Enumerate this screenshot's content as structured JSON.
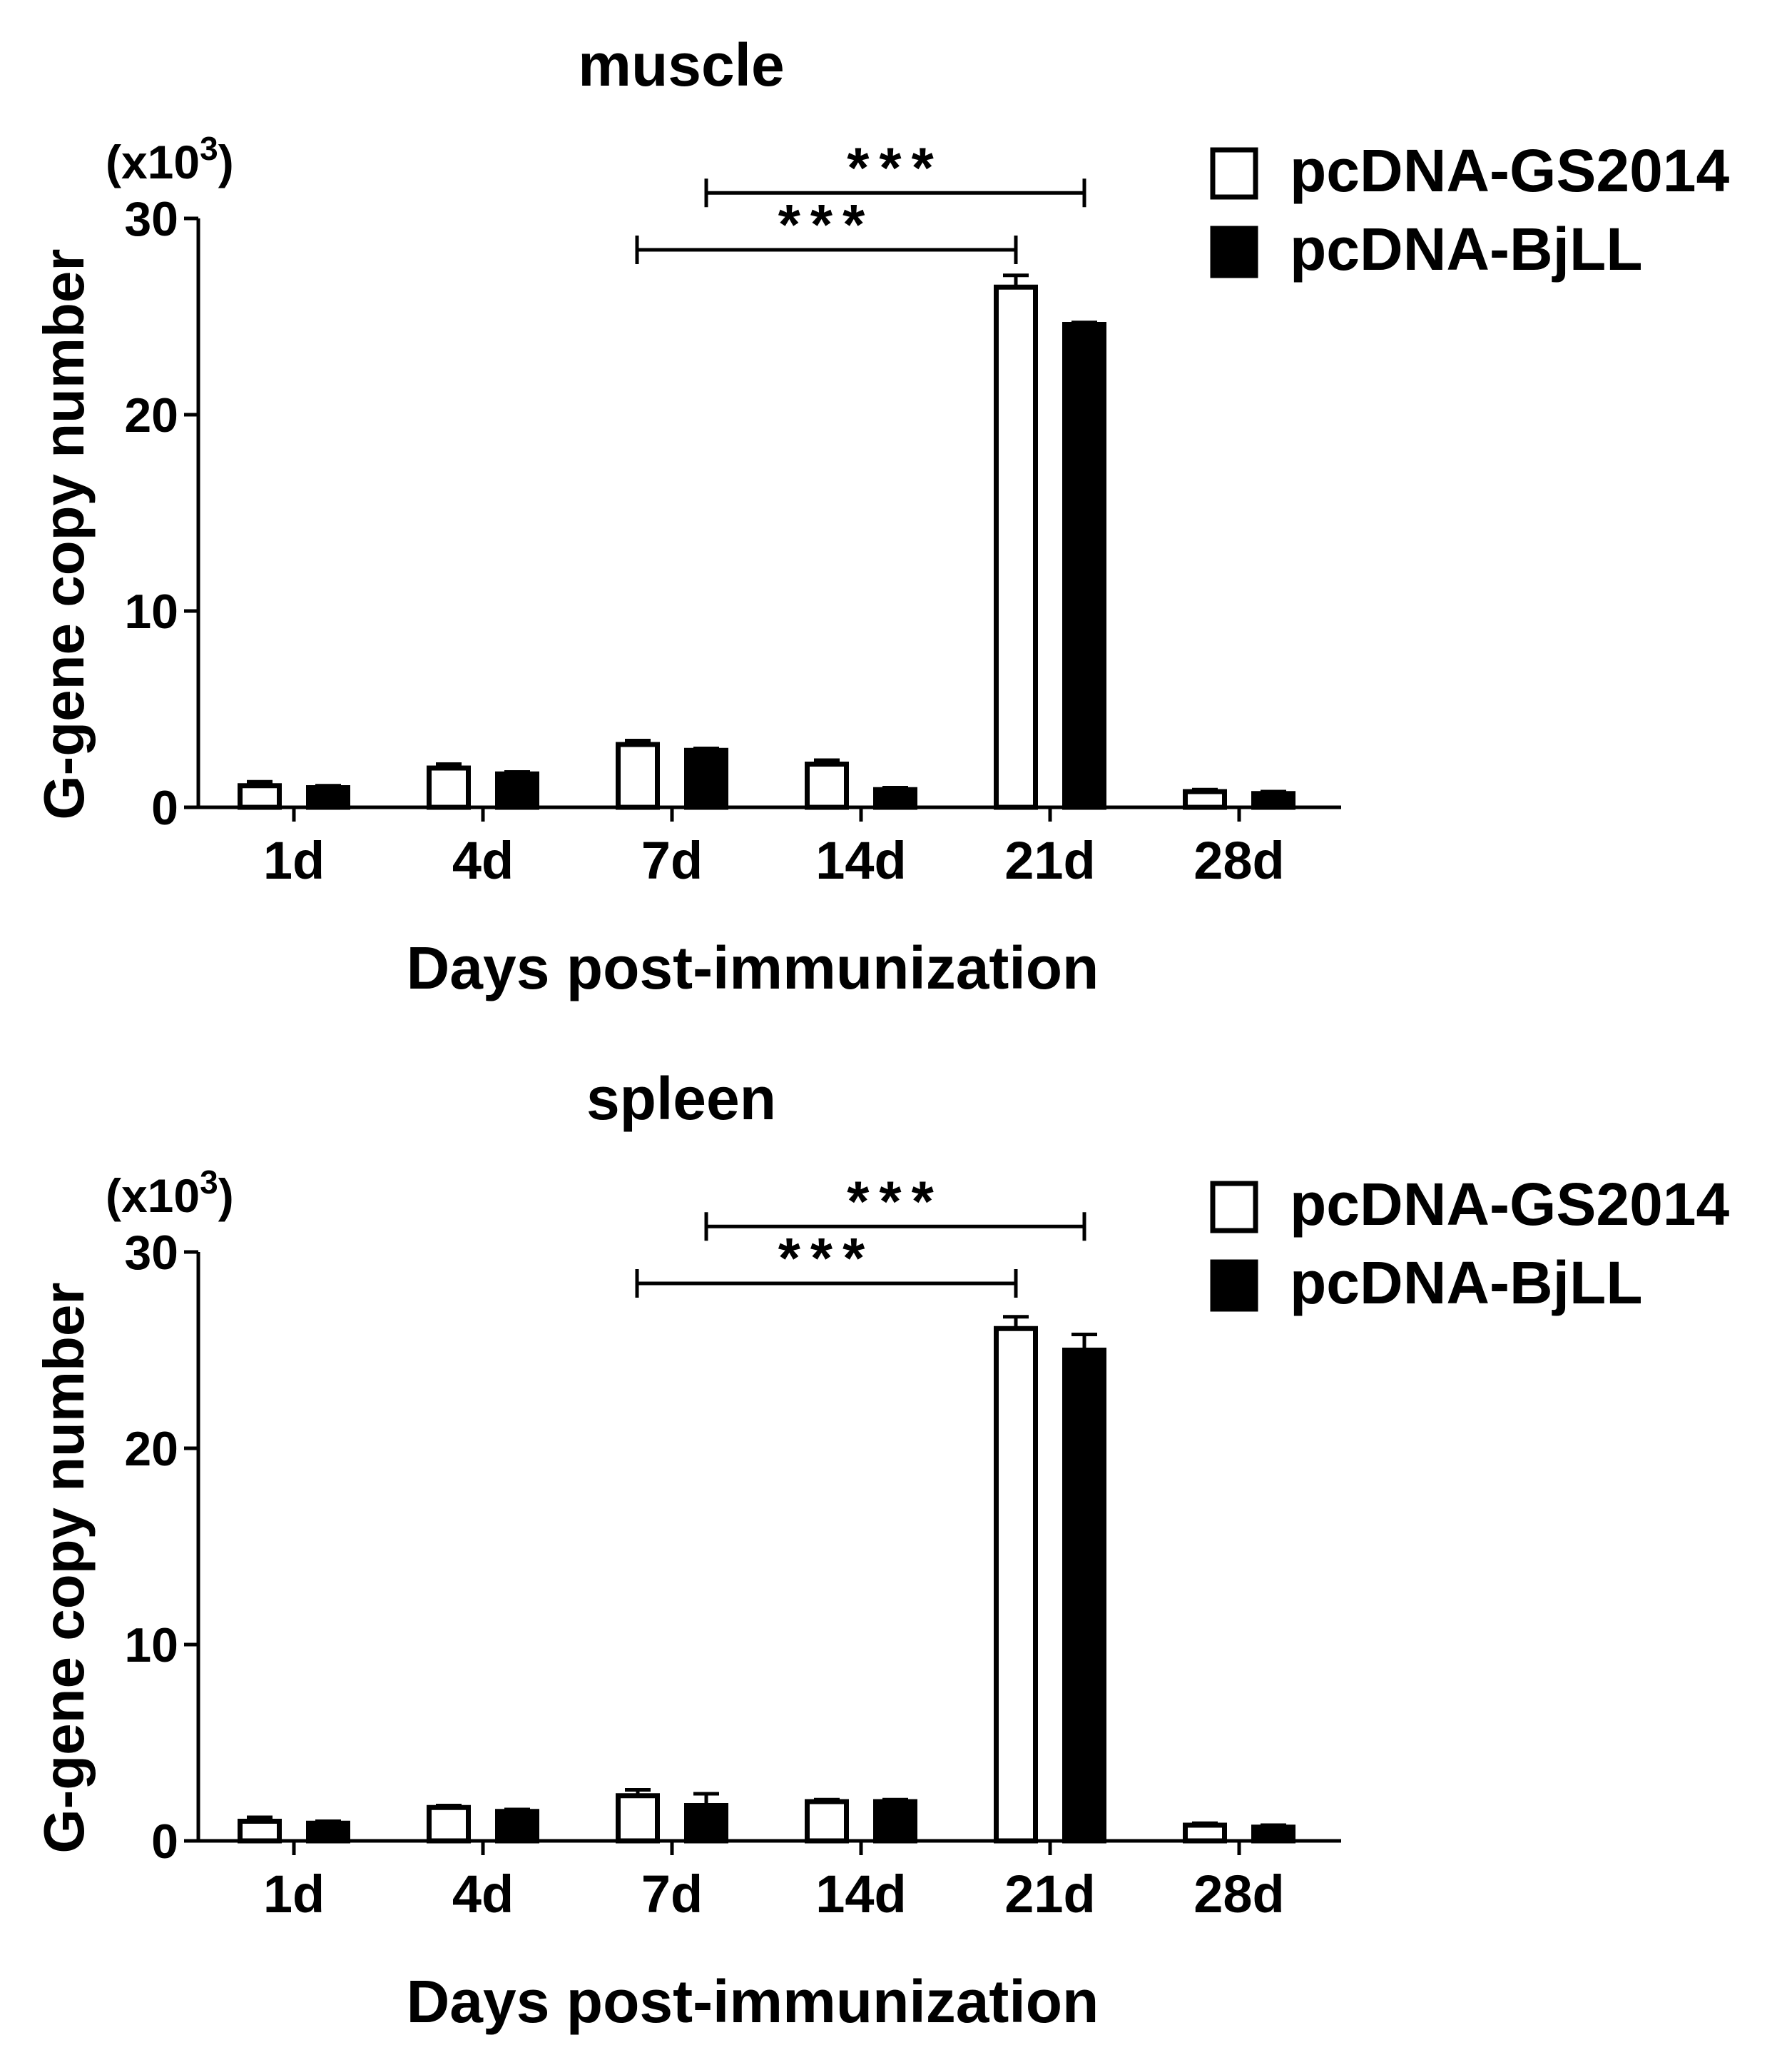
{
  "chart_data": [
    {
      "type": "bar",
      "title": "muscle",
      "xlabel": "Days post-immunization",
      "ylabel": "G-gene copy number",
      "yunit_prefix": "(x10",
      "yunit_exp": "3",
      "yunit_suffix": ")",
      "ylim": [
        0,
        30
      ],
      "yticks": [
        "0",
        "10",
        "20",
        "30"
      ],
      "categories": [
        "1d",
        "4d",
        "7d",
        "14d",
        "21d",
        "28d"
      ],
      "series": [
        {
          "name": "pcDNA-GS2014",
          "fill": "#ffffff",
          "values": [
            1.1,
            2.0,
            3.2,
            2.2,
            26.5,
            0.8
          ],
          "errors": [
            0.2,
            0.2,
            0.2,
            0.2,
            0.6,
            0.1
          ]
        },
        {
          "name": "pcDNA-BjLL",
          "fill": "#000000",
          "values": [
            1.0,
            1.7,
            2.9,
            0.9,
            24.6,
            0.7
          ],
          "errors": [
            0.1,
            0.1,
            0.1,
            0.1,
            0.1,
            0.1
          ]
        }
      ],
      "significance": [
        {
          "label": "***",
          "from_category": "7d",
          "from_series": 0,
          "to_category": "21d",
          "to_series": 0,
          "level": 28.4
        },
        {
          "label": "***",
          "from_category": "7d",
          "from_series": 1,
          "to_category": "21d",
          "to_series": 1,
          "level": 31.3
        }
      ],
      "legend": "top-right",
      "grid": false
    },
    {
      "type": "bar",
      "title": "spleen",
      "xlabel": "Days post-immunization",
      "ylabel": "G-gene copy number",
      "yunit_prefix": "(x10",
      "yunit_exp": "3",
      "yunit_suffix": ")",
      "ylim": [
        0,
        30
      ],
      "yticks": [
        "0",
        "10",
        "20",
        "30"
      ],
      "categories": [
        "1d",
        "4d",
        "7d",
        "14d",
        "21d",
        "28d"
      ],
      "series": [
        {
          "name": "pcDNA-GS2014",
          "fill": "#ffffff",
          "values": [
            1.0,
            1.7,
            2.3,
            2.0,
            26.1,
            0.8
          ],
          "errors": [
            0.2,
            0.1,
            0.3,
            0.1,
            0.6,
            0.1
          ]
        },
        {
          "name": "pcDNA-BjLL",
          "fill": "#000000",
          "values": [
            0.9,
            1.5,
            1.8,
            2.0,
            25.0,
            0.7
          ],
          "errors": [
            0.1,
            0.1,
            0.6,
            0.1,
            0.8,
            0.1
          ]
        }
      ],
      "significance": [
        {
          "label": "***",
          "from_category": "7d",
          "from_series": 0,
          "to_category": "21d",
          "to_series": 0,
          "level": 28.4
        },
        {
          "label": "***",
          "from_category": "7d",
          "from_series": 1,
          "to_category": "21d",
          "to_series": 1,
          "level": 31.3
        }
      ],
      "legend": "top-right",
      "grid": false
    }
  ]
}
